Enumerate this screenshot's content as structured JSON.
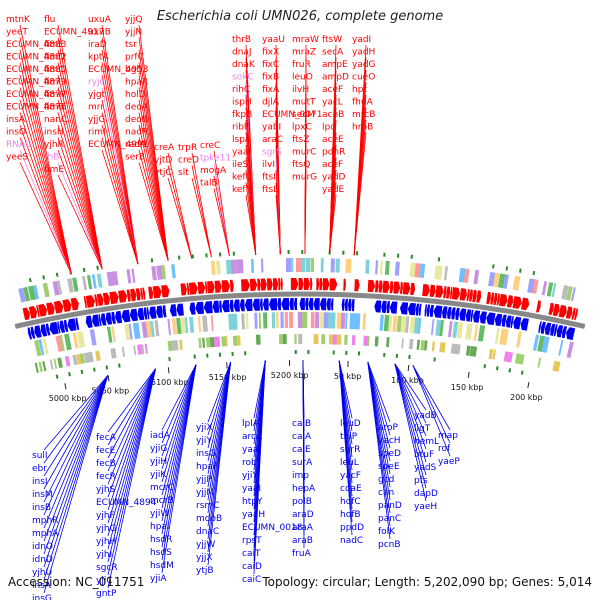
{
  "title": "Escherichia coli UMN026, complete genome",
  "footer": {
    "accession": "Accession: NC_011751",
    "summary": "Topology: circular; Length: 5,202,090 bp; Genes: 5,014"
  },
  "colors": {
    "forward_gene": "#ff0000",
    "reverse_gene": "#0000ee",
    "rna_gene": "#ee82ee",
    "backbone": "#888888"
  },
  "ticks": [
    "5000 kbp",
    "5050 kbp",
    "5100 kbp",
    "5150 kbp",
    "5200 kbp",
    "50 kbp",
    "100 kbp",
    "150 kbp",
    "200 kbp"
  ],
  "forward_labels": [
    {
      "text": "mtnK",
      "kind": "gene"
    },
    {
      "text": "yeeT",
      "kind": "gene"
    },
    {
      "text": "ECUMN_4883",
      "kind": "gene"
    },
    {
      "text": "ECUMN_4882",
      "kind": "gene"
    },
    {
      "text": "ECUMN_4880",
      "kind": "gene"
    },
    {
      "text": "ECUMN_4879",
      "kind": "gene"
    },
    {
      "text": "ECUMN_4877",
      "kind": "gene"
    },
    {
      "text": "ECUMN_4876",
      "kind": "gene"
    },
    {
      "text": "insA",
      "kind": "gene"
    },
    {
      "text": "insO",
      "kind": "gene"
    },
    {
      "text": "RNAC",
      "kind": "rna"
    },
    {
      "text": "yeeS",
      "kind": "gene"
    },
    {
      "text": "flu",
      "kind": "gene"
    },
    {
      "text": "ECUMN_4917",
      "kind": "gene"
    },
    {
      "text": "fimE",
      "kind": "gene"
    },
    {
      "text": "fimD",
      "kind": "gene"
    },
    {
      "text": "fimC",
      "kind": "gene"
    },
    {
      "text": "fimI",
      "kind": "gene"
    },
    {
      "text": "fimA",
      "kind": "gene"
    },
    {
      "text": "fimB",
      "kind": "gene"
    },
    {
      "text": "nanC",
      "kind": "gene"
    },
    {
      "text": "insH",
      "kind": "gene"
    },
    {
      "text": "yjhR",
      "kind": "gene"
    },
    {
      "text": "rhB",
      "kind": "rna"
    },
    {
      "text": "fimE",
      "kind": "gene"
    },
    {
      "text": "uxuA",
      "kind": "gene"
    },
    {
      "text": "uxuB",
      "kind": "gene"
    },
    {
      "text": "iraD",
      "kind": "gene"
    },
    {
      "text": "kptA",
      "kind": "gene"
    },
    {
      "text": "ECUMN_4953",
      "kind": "gene"
    },
    {
      "text": "ryjC",
      "kind": "rna"
    },
    {
      "text": "yjgt",
      "kind": "gene"
    },
    {
      "text": "mrr",
      "kind": "gene"
    },
    {
      "text": "yjjG",
      "kind": "gene"
    },
    {
      "text": "rimI",
      "kind": "gene"
    },
    {
      "text": "ECUMN_4991",
      "kind": "gene"
    },
    {
      "text": "yjjQ",
      "kind": "gene"
    },
    {
      "text": "yjjN",
      "kind": "gene"
    },
    {
      "text": "tsr",
      "kind": "gene"
    },
    {
      "text": "prfC",
      "kind": "gene"
    },
    {
      "text": "bglJ",
      "kind": "gene"
    },
    {
      "text": "hpaR",
      "kind": "gene"
    },
    {
      "text": "holD",
      "kind": "gene"
    },
    {
      "text": "deoA",
      "kind": "gene"
    },
    {
      "text": "deoB",
      "kind": "gene"
    },
    {
      "text": "nadR",
      "kind": "gene"
    },
    {
      "text": "radA",
      "kind": "gene"
    },
    {
      "text": "serB",
      "kind": "gene"
    },
    {
      "text": "creA",
      "kind": "gene"
    },
    {
      "text": "yjtD",
      "kind": "gene"
    },
    {
      "text": "ytjC",
      "kind": "gene"
    },
    {
      "text": "trpR",
      "kind": "gene"
    },
    {
      "text": "creD",
      "kind": "gene"
    },
    {
      "text": "slt",
      "kind": "gene"
    },
    {
      "text": "creC",
      "kind": "gene"
    },
    {
      "text": "tpke11",
      "kind": "rna"
    },
    {
      "text": "mogA",
      "kind": "gene"
    },
    {
      "text": "talB",
      "kind": "gene"
    },
    {
      "text": "thrB",
      "kind": "gene"
    },
    {
      "text": "dnaJ",
      "kind": "gene"
    },
    {
      "text": "dnaK",
      "kind": "gene"
    },
    {
      "text": "sokC",
      "kind": "rna"
    },
    {
      "text": "rihC",
      "kind": "gene"
    },
    {
      "text": "ispH",
      "kind": "gene"
    },
    {
      "text": "fkpB",
      "kind": "gene"
    },
    {
      "text": "ribF",
      "kind": "gene"
    },
    {
      "text": "lspA",
      "kind": "gene"
    },
    {
      "text": "yaaI",
      "kind": "gene"
    },
    {
      "text": "ileS",
      "kind": "gene"
    },
    {
      "text": "kefC",
      "kind": "gene"
    },
    {
      "text": "kefF",
      "kind": "gene"
    },
    {
      "text": "yaaU",
      "kind": "gene"
    },
    {
      "text": "fixX",
      "kind": "gene"
    },
    {
      "text": "fixC",
      "kind": "gene"
    },
    {
      "text": "fixB",
      "kind": "gene"
    },
    {
      "text": "fixA",
      "kind": "gene"
    },
    {
      "text": "djlA",
      "kind": "gene"
    },
    {
      "text": "ECUMN_0071",
      "kind": "gene"
    },
    {
      "text": "yabI",
      "kind": "gene"
    },
    {
      "text": "araC",
      "kind": "gene"
    },
    {
      "text": "sgrS",
      "kind": "rna"
    },
    {
      "text": "ilvI",
      "kind": "gene"
    },
    {
      "text": "ftsI",
      "kind": "gene"
    },
    {
      "text": "ftsL",
      "kind": "gene"
    },
    {
      "text": "mraW",
      "kind": "gene"
    },
    {
      "text": "mraZ",
      "kind": "gene"
    },
    {
      "text": "fruR",
      "kind": "gene"
    },
    {
      "text": "leuO",
      "kind": "gene"
    },
    {
      "text": "ilvH",
      "kind": "gene"
    },
    {
      "text": "mutT",
      "kind": "gene"
    },
    {
      "text": "secM",
      "kind": "gene"
    },
    {
      "text": "lpxC",
      "kind": "gene"
    },
    {
      "text": "ftsZ",
      "kind": "gene"
    },
    {
      "text": "murC",
      "kind": "gene"
    },
    {
      "text": "ftsQ",
      "kind": "gene"
    },
    {
      "text": "murG",
      "kind": "gene"
    },
    {
      "text": "ftsW",
      "kind": "gene"
    },
    {
      "text": "secA",
      "kind": "gene"
    },
    {
      "text": "ampE",
      "kind": "gene"
    },
    {
      "text": "ampD",
      "kind": "gene"
    },
    {
      "text": "aceF",
      "kind": "gene"
    },
    {
      "text": "yacL",
      "kind": "gene"
    },
    {
      "text": "acnB",
      "kind": "gene"
    },
    {
      "text": "lpd",
      "kind": "gene"
    },
    {
      "text": "aceE",
      "kind": "gene"
    },
    {
      "text": "pdhR",
      "kind": "gene"
    },
    {
      "text": "aceF",
      "kind": "gene"
    },
    {
      "text": "yadD",
      "kind": "gene"
    },
    {
      "text": "yadE",
      "kind": "gene"
    },
    {
      "text": "yadI",
      "kind": "gene"
    },
    {
      "text": "yadH",
      "kind": "gene"
    },
    {
      "text": "yadG",
      "kind": "gene"
    },
    {
      "text": "cueO",
      "kind": "gene"
    },
    {
      "text": "hpt",
      "kind": "gene"
    },
    {
      "text": "fhuA",
      "kind": "gene"
    },
    {
      "text": "mrcB",
      "kind": "gene"
    },
    {
      "text": "hrpB",
      "kind": "gene"
    }
  ],
  "reverse_labels": [
    "sulI",
    "ebr",
    "insI",
    "insM",
    "insB",
    "mphR",
    "mphA",
    "idnO",
    "idnD",
    "yjhU",
    "insA",
    "insG",
    "fecA",
    "fecE",
    "fecB",
    "fecR",
    "yjhS",
    "ECUMN_4894",
    "yjhF",
    "yjhG",
    "yjhH",
    "yjhI",
    "sgcR",
    "yjiC",
    "gntP",
    "iadA",
    "yjiG",
    "yjiH",
    "yjiK",
    "mcrC",
    "mcrB",
    "yjiW",
    "hpaI",
    "hsdR",
    "hsdS",
    "hsdM",
    "yjiA",
    "yjiX",
    "yjiY",
    "insG",
    "hpaF",
    "yjjP",
    "yjjM",
    "rsmC",
    "mdoB",
    "dnaC",
    "yjjW",
    "yjjX",
    "ytjB",
    "lplA",
    "arcA",
    "yaaJ",
    "rob",
    "yjiY",
    "yaaI",
    "htpY",
    "yaaH",
    "ECUMN_0018",
    "rpsT",
    "caiT",
    "caiD",
    "caiC",
    "caiB",
    "caiA",
    "caiE",
    "surA",
    "imp",
    "hepA",
    "polB",
    "araD",
    "araA",
    "araB",
    "fruA",
    "leuD",
    "thiP",
    "sgrR",
    "leuL",
    "yacF",
    "coaE",
    "hofC",
    "hofB",
    "ppdD",
    "nadC",
    "aroP",
    "yacH",
    "speD",
    "speE",
    "gcd",
    "can",
    "panD",
    "panC",
    "folK",
    "pcnB",
    "yadB",
    "ligT",
    "hemL",
    "btuF",
    "yadS",
    "pfs",
    "dapD",
    "yaeH",
    "map",
    "rof",
    "yaeP"
  ]
}
